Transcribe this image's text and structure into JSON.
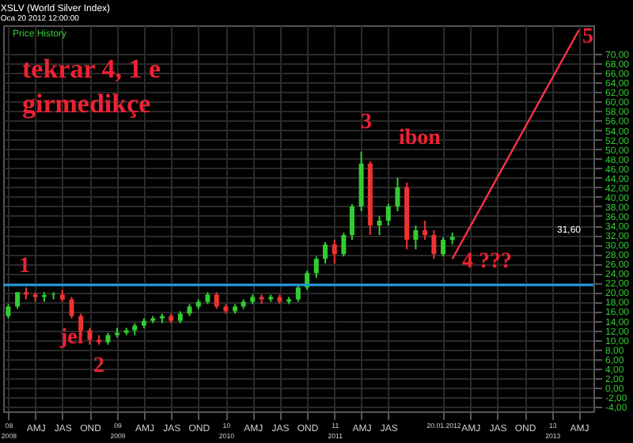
{
  "chart_data": {
    "type": "candlestick",
    "title": "XSLV (World Silver Index)",
    "subtitle": "Oca 20 2012 12:00:00",
    "x": [
      "2008-01",
      "2008-02",
      "2008-03",
      "2008-04",
      "2008-05",
      "2008-06",
      "2008-07",
      "2008-08",
      "2008-09",
      "2008-10",
      "2008-11",
      "2008-12",
      "2009-01",
      "2009-02",
      "2009-03",
      "2009-04",
      "2009-05",
      "2009-06",
      "2009-07",
      "2009-08",
      "2009-09",
      "2009-10",
      "2009-11",
      "2009-12",
      "2010-01",
      "2010-02",
      "2010-03",
      "2010-04",
      "2010-05",
      "2010-06",
      "2010-07",
      "2010-08",
      "2010-09",
      "2010-10",
      "2010-11",
      "2010-12",
      "2011-01",
      "2011-02",
      "2011-03",
      "2011-04",
      "2011-05",
      "2011-06",
      "2011-07",
      "2011-08",
      "2011-09",
      "2011-10",
      "2011-11",
      "2011-12",
      "2012-01",
      "2012-02"
    ],
    "ohlc": [
      [
        15,
        17.5,
        14.5,
        17
      ],
      [
        17,
        20,
        16.5,
        20
      ],
      [
        20,
        21,
        18.5,
        19.5
      ],
      [
        19.5,
        20,
        18,
        19
      ],
      [
        19,
        20,
        18,
        19.4
      ],
      [
        19.4,
        20,
        18.5,
        19.5
      ],
      [
        19.5,
        20.5,
        18,
        18.5
      ],
      [
        18.5,
        19,
        14.5,
        15
      ],
      [
        15,
        15.5,
        11,
        12
      ],
      [
        12,
        12.5,
        9,
        10
      ],
      [
        10,
        11,
        9,
        9.5
      ],
      [
        9.5,
        11.5,
        9,
        11
      ],
      [
        11,
        12.5,
        10.5,
        11.5
      ],
      [
        11.5,
        12.5,
        11,
        12
      ],
      [
        12,
        13.5,
        11,
        13
      ],
      [
        13,
        14.5,
        12.5,
        14
      ],
      [
        14,
        15,
        13.5,
        14.5
      ],
      [
        14.5,
        15.5,
        13.5,
        15
      ],
      [
        15,
        15.5,
        13.5,
        14
      ],
      [
        14,
        16,
        13.5,
        15.5
      ],
      [
        15.5,
        17.5,
        15,
        17
      ],
      [
        17,
        18.5,
        16.5,
        18
      ],
      [
        18,
        20,
        17.5,
        19.5
      ],
      [
        19.5,
        20,
        16.5,
        17
      ],
      [
        17,
        17.5,
        15.5,
        16
      ],
      [
        16,
        17.5,
        15.5,
        17
      ],
      [
        17,
        18.5,
        16.5,
        18
      ],
      [
        18,
        19.5,
        17.5,
        19
      ],
      [
        19,
        19.5,
        17.5,
        18.5
      ],
      [
        18.5,
        19.5,
        18,
        19
      ],
      [
        19,
        19.5,
        17.5,
        18
      ],
      [
        18,
        19,
        17.5,
        18.5
      ],
      [
        18.5,
        21.5,
        18,
        21
      ],
      [
        21,
        24.5,
        20.5,
        24
      ],
      [
        24,
        27.5,
        23,
        27
      ],
      [
        27,
        30.5,
        26,
        30
      ],
      [
        30,
        31,
        26,
        28
      ],
      [
        28,
        32.5,
        27.5,
        32
      ],
      [
        32,
        38.5,
        31,
        38
      ],
      [
        38,
        49.5,
        37,
        47
      ],
      [
        47,
        47.5,
        32,
        34
      ],
      [
        34,
        36,
        32,
        35
      ],
      [
        35,
        38.5,
        34,
        38
      ],
      [
        38,
        44,
        37,
        42
      ],
      [
        42,
        43,
        29,
        31
      ],
      [
        31,
        34,
        29,
        33
      ],
      [
        33,
        35,
        31,
        32
      ],
      [
        32,
        33,
        27,
        28
      ],
      [
        28,
        31.5,
        27.5,
        31
      ],
      [
        31,
        32.5,
        30,
        31.6
      ]
    ],
    "colors": [
      "#33cc33",
      "#33cc33",
      "#ee3333",
      "#ee3333",
      "#33cc33",
      "#33cc33",
      "#ee3333",
      "#ee3333",
      "#ee3333",
      "#ee3333",
      "#ee3333",
      "#33cc33",
      "#33cc33",
      "#33cc33",
      "#33cc33",
      "#33cc33",
      "#33cc33",
      "#33cc33",
      "#ee3333",
      "#33cc33",
      "#33cc33",
      "#33cc33",
      "#33cc33",
      "#ee3333",
      "#ee3333",
      "#33cc33",
      "#33cc33",
      "#33cc33",
      "#ee3333",
      "#33cc33",
      "#ee3333",
      "#33cc33",
      "#33cc33",
      "#33cc33",
      "#33cc33",
      "#33cc33",
      "#ee3333",
      "#33cc33",
      "#33cc33",
      "#33cc33",
      "#ee3333",
      "#33cc33",
      "#33cc33",
      "#33cc33",
      "#ee3333",
      "#33cc33",
      "#ee3333",
      "#ee3333",
      "#33cc33",
      "#33cc33"
    ],
    "series": [
      {
        "type": "line",
        "color": "#ff3344",
        "x": [
          "2012-02",
          "2013-04"
        ],
        "values": [
          27,
          75
        ]
      }
    ],
    "xlim": [
      "2007-12-15",
      "2013-05-20"
    ],
    "xticks": [
      {
        "value": "2008-01",
        "label": "08\n2008"
      },
      {
        "value": "2008-04",
        "label": "AMJ"
      },
      {
        "value": "2008-07",
        "label": "JAS"
      },
      {
        "value": "2008-10",
        "label": "OND"
      },
      {
        "value": "2009-01",
        "label": "09\n2009"
      },
      {
        "value": "2009-04",
        "label": "AMJ"
      },
      {
        "value": "2009-07",
        "label": "JAS"
      },
      {
        "value": "2009-10",
        "label": "OND"
      },
      {
        "value": "2010-01",
        "label": "10\n2010"
      },
      {
        "value": "2010-04",
        "label": "AMJ"
      },
      {
        "value": "2010-07",
        "label": "JAS"
      },
      {
        "value": "2010-10",
        "label": "OND"
      },
      {
        "value": "2011-01",
        "label": "11\n2011"
      },
      {
        "value": "2011-04",
        "label": "AMJ"
      },
      {
        "value": "2011-07",
        "label": "JAS"
      },
      {
        "value": "2012-01",
        "label": "20.01.2012"
      },
      {
        "value": "2012-04",
        "label": "AMJ"
      },
      {
        "value": "2012-07",
        "label": "JAS"
      },
      {
        "value": "2012-10",
        "label": "OND"
      },
      {
        "value": "2013-01",
        "label": "13\n2013"
      },
      {
        "value": "2013-04",
        "label": "AMJ"
      }
    ],
    "ylim": [
      -5,
      76
    ],
    "yticks": [
      {
        "value": -4,
        "label": "-4,00"
      },
      {
        "value": -2,
        "label": "-2,00"
      },
      {
        "value": 0,
        "label": "0,00"
      },
      {
        "value": 2,
        "label": "2,00"
      },
      {
        "value": 4,
        "label": "4,00"
      },
      {
        "value": 6,
        "label": "6,00"
      },
      {
        "value": 8,
        "label": "8,00"
      },
      {
        "value": 10,
        "label": "10,00"
      },
      {
        "value": 12,
        "label": "12,00"
      },
      {
        "value": 14,
        "label": "14,00"
      },
      {
        "value": 16,
        "label": "16,00"
      },
      {
        "value": 18,
        "label": "18,00"
      },
      {
        "value": 20,
        "label": "20,00"
      },
      {
        "value": 22,
        "label": "22,00"
      },
      {
        "value": 24,
        "label": "24,00"
      },
      {
        "value": 26,
        "label": "26,00"
      },
      {
        "value": 28,
        "label": "28,00"
      },
      {
        "value": 30,
        "label": "30,00"
      },
      {
        "value": 32,
        "label": "32,00"
      },
      {
        "value": 34,
        "label": "34,00"
      },
      {
        "value": 36,
        "label": "36,00"
      },
      {
        "value": 38,
        "label": "38,00"
      },
      {
        "value": 40,
        "label": "40,00"
      },
      {
        "value": 42,
        "label": "42,00"
      },
      {
        "value": 44,
        "label": "44,00"
      },
      {
        "value": 46,
        "label": "46,00"
      },
      {
        "value": 48,
        "label": "48,00"
      },
      {
        "value": 50,
        "label": "50,00"
      },
      {
        "value": 52,
        "label": "52,00"
      },
      {
        "value": 54,
        "label": "54,00"
      },
      {
        "value": 56,
        "label": "56,00"
      },
      {
        "value": 58,
        "label": "58,00"
      },
      {
        "value": 60,
        "label": "60,00"
      },
      {
        "value": 62,
        "label": "62,00"
      },
      {
        "value": 64,
        "label": "64,00"
      },
      {
        "value": 66,
        "label": "66,00"
      },
      {
        "value": 68,
        "label": "68,00"
      },
      {
        "value": 70,
        "label": "70,00"
      }
    ],
    "grid": true,
    "ref_lines": [
      {
        "axis": "y",
        "value": 21.5,
        "color": "#2299dd"
      }
    ],
    "annotations": [
      "Price History",
      "tekrar 4, 1 e\ngirmedikçe",
      "1",
      "jel",
      "2",
      "3",
      "ibon",
      "4 ???",
      "5",
      "31,60"
    ]
  }
}
